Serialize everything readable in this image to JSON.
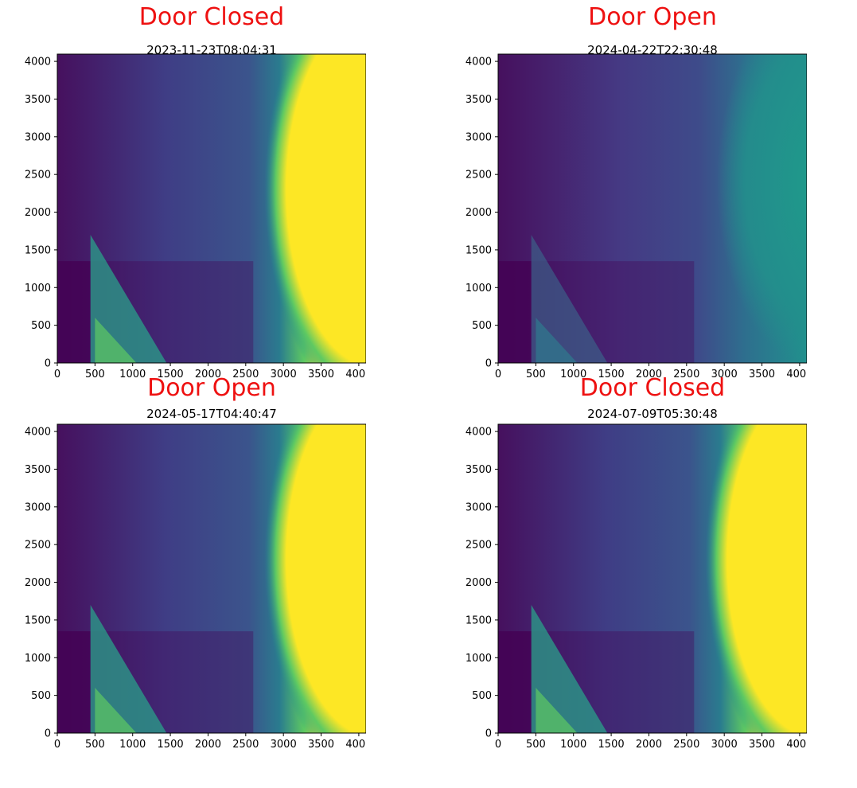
{
  "chart_data": [
    {
      "type": "heatmap",
      "title": "Door Closed",
      "subtitle": "2023-11-23T08:04:31",
      "xlim": [
        0,
        4096
      ],
      "ylim": [
        0,
        4096
      ],
      "xticks": [
        0,
        500,
        1000,
        1500,
        2000,
        2500,
        3000,
        3500,
        4000
      ],
      "yticks": [
        0,
        500,
        1000,
        1500,
        2000,
        2500,
        3000,
        3500,
        4000
      ],
      "colormap": "viridis",
      "grid": false
    },
    {
      "type": "heatmap",
      "title": "Door Open",
      "subtitle": "2024-04-22T22:30:48",
      "xlim": [
        0,
        4096
      ],
      "ylim": [
        0,
        4096
      ],
      "xticks": [
        0,
        500,
        1000,
        1500,
        2000,
        2500,
        3000,
        3500,
        4000
      ],
      "yticks": [
        0,
        500,
        1000,
        1500,
        2000,
        2500,
        3000,
        3500,
        4000
      ],
      "colormap": "viridis",
      "grid": false
    },
    {
      "type": "heatmap",
      "title": "Door Open",
      "subtitle": "2024-05-17T04:40:47",
      "xlim": [
        0,
        4096
      ],
      "ylim": [
        0,
        4096
      ],
      "xticks": [
        0,
        500,
        1000,
        1500,
        2000,
        2500,
        3000,
        3500,
        4000
      ],
      "yticks": [
        0,
        500,
        1000,
        1500,
        2000,
        2500,
        3000,
        3500,
        4000
      ],
      "colormap": "viridis",
      "grid": false
    },
    {
      "type": "heatmap",
      "title": "Door Closed",
      "subtitle": "2024-07-09T05:30:48",
      "xlim": [
        0,
        4096
      ],
      "ylim": [
        0,
        4096
      ],
      "xticks": [
        0,
        500,
        1000,
        1500,
        2000,
        2500,
        3000,
        3500,
        4000
      ],
      "yticks": [
        0,
        500,
        1000,
        1500,
        2000,
        2500,
        3000,
        3500,
        4000
      ],
      "colormap": "viridis",
      "grid": false
    }
  ],
  "colors": {
    "title": "#ee1111",
    "dark": "#440154",
    "mid": "#3b528b",
    "teal": "#21918c",
    "green": "#5ec962",
    "yellow": "#fde725"
  }
}
